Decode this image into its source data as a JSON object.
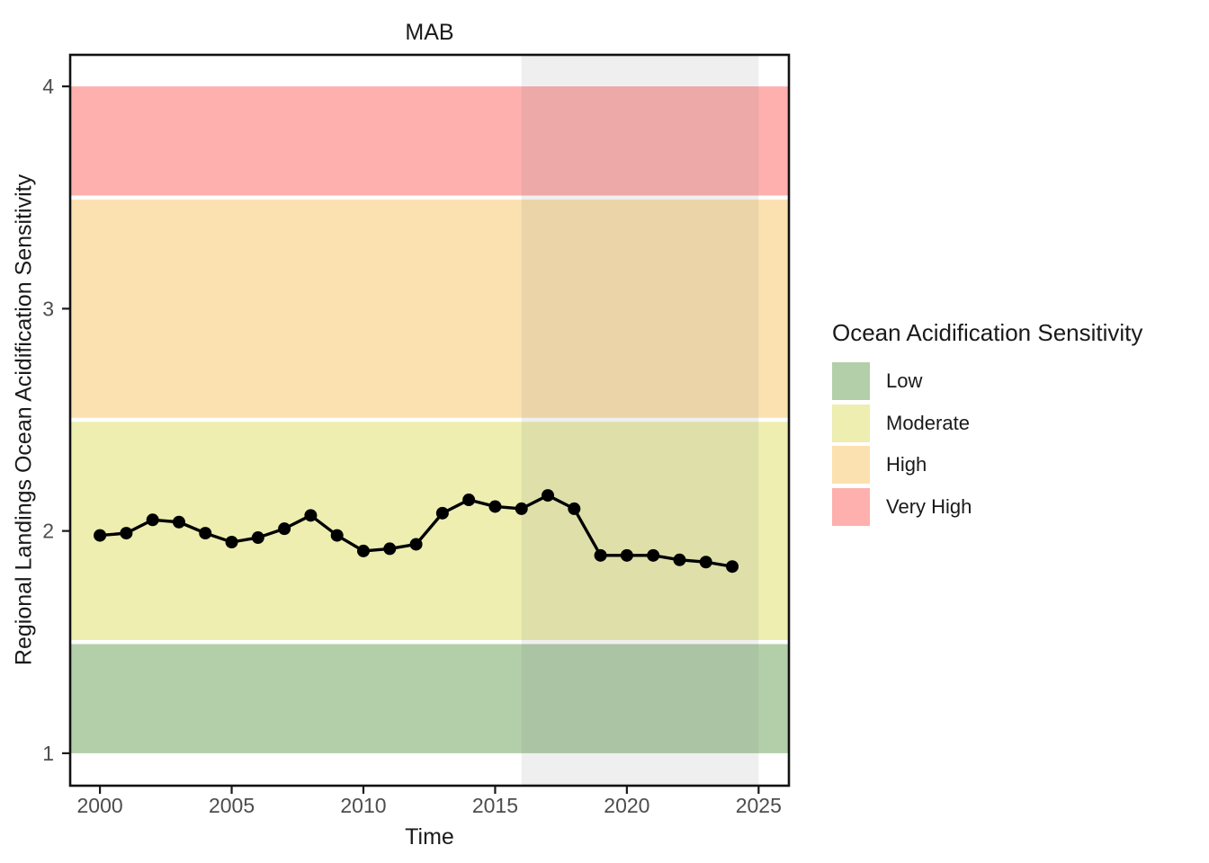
{
  "chart_data": {
    "type": "line",
    "title": "MAB",
    "xlabel": "Time",
    "ylabel": "Regional Landings Ocean Acidification Sensitivity",
    "x": [
      2000,
      2001,
      2002,
      2003,
      2004,
      2005,
      2006,
      2007,
      2008,
      2009,
      2010,
      2011,
      2012,
      2013,
      2014,
      2015,
      2016,
      2017,
      2018,
      2019,
      2020,
      2021,
      2022,
      2023,
      2024
    ],
    "values": [
      1.98,
      1.99,
      2.05,
      2.04,
      1.99,
      1.95,
      1.97,
      2.01,
      2.07,
      1.98,
      1.91,
      1.92,
      1.94,
      2.08,
      2.14,
      2.11,
      2.1,
      2.16,
      2.1,
      1.89,
      1.89,
      1.89,
      1.87,
      1.86,
      1.84
    ],
    "xticks": [
      2000,
      2005,
      2010,
      2015,
      2020,
      2025
    ],
    "yticks": [
      1,
      2,
      3,
      4
    ],
    "xlim": [
      1998.87,
      2026.15
    ],
    "ylim": [
      0.854,
      4.142
    ],
    "grid": false,
    "legend_position": "right",
    "line_color": "#000000",
    "point_color": "#000000",
    "axis_text_color": "#4d4d4d",
    "axis_line_color": "#1a1a1a",
    "bands": [
      {
        "label": "Low",
        "from": 1.0,
        "to": 1.5,
        "color": "#b2cfa9"
      },
      {
        "label": "Moderate",
        "from": 1.5,
        "to": 2.5,
        "color": "#edeeb0"
      },
      {
        "label": "High",
        "from": 2.5,
        "to": 3.5,
        "color": "#fce1b0"
      },
      {
        "label": "Very High",
        "from": 3.5,
        "to": 4.0,
        "color": "#fdb0ad"
      }
    ],
    "highlight_region": {
      "from": 2016,
      "to": 2025,
      "color": "#7f7f7f",
      "opacity": 0.12
    }
  },
  "legend": {
    "title": "Ocean Acidification Sensitivity",
    "items": [
      {
        "label": "Low",
        "color": "#b2cfa9"
      },
      {
        "label": "Moderate",
        "color": "#edeeb0"
      },
      {
        "label": "High",
        "color": "#fce1b0"
      },
      {
        "label": "Very High",
        "color": "#fdb0ad"
      }
    ]
  }
}
